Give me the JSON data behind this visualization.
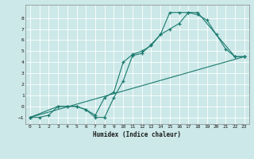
{
  "background_color": "#cce8e8",
  "grid_color": "#ffffff",
  "line_color": "#1a7a6e",
  "xlabel": "Humidex (Indice chaleur)",
  "xlim": [
    -0.5,
    23.5
  ],
  "ylim": [
    -1.6,
    9.2
  ],
  "xticks": [
    0,
    1,
    2,
    3,
    4,
    5,
    6,
    7,
    8,
    9,
    10,
    11,
    12,
    13,
    14,
    15,
    16,
    17,
    18,
    19,
    20,
    21,
    22,
    23
  ],
  "yticks": [
    -1,
    0,
    1,
    2,
    3,
    4,
    5,
    6,
    7,
    8
  ],
  "series": [
    {
      "x": [
        0,
        1,
        2,
        3,
        4,
        5,
        6,
        7,
        8,
        9,
        10,
        11,
        12,
        13,
        14,
        15,
        16,
        17,
        18,
        22,
        23
      ],
      "y": [
        -1,
        -1,
        -0.8,
        0,
        0,
        0,
        -0.3,
        -1,
        -1,
        0.8,
        2.3,
        4.6,
        4.8,
        5.6,
        6.5,
        7.0,
        7.5,
        8.5,
        8.5,
        4.5,
        4.5
      ]
    },
    {
      "x": [
        0,
        3,
        4,
        5,
        6,
        7,
        8,
        9,
        10,
        11,
        12,
        13,
        14,
        15,
        16,
        17,
        18,
        19,
        20,
        21,
        22,
        23
      ],
      "y": [
        -1,
        0,
        0,
        0,
        -0.3,
        -0.8,
        0.8,
        1.3,
        4.0,
        4.7,
        5.0,
        5.5,
        6.5,
        8.5,
        8.5,
        8.5,
        8.3,
        7.8,
        6.5,
        5.2,
        4.5,
        4.5
      ]
    },
    {
      "x": [
        0,
        23
      ],
      "y": [
        -1,
        4.5
      ]
    }
  ]
}
